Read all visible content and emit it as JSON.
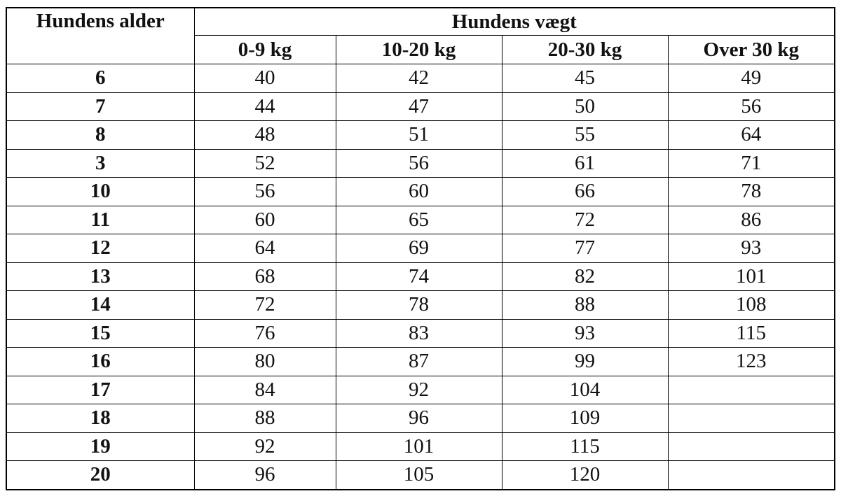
{
  "table": {
    "header": {
      "age": "Hundens alder",
      "weight": "Hundens vægt",
      "columns": [
        "0-9 kg",
        "10-20 kg",
        "20-30 kg",
        "Over 30 kg"
      ]
    },
    "rows": [
      [
        6,
        40,
        42,
        45,
        49
      ],
      [
        7,
        44,
        47,
        50,
        56
      ],
      [
        8,
        48,
        51,
        55,
        64
      ],
      [
        3,
        52,
        56,
        61,
        71
      ],
      [
        10,
        56,
        60,
        66,
        78
      ],
      [
        11,
        60,
        65,
        72,
        86
      ],
      [
        12,
        64,
        69,
        77,
        93
      ],
      [
        13,
        68,
        74,
        82,
        101
      ],
      [
        14,
        72,
        78,
        88,
        108
      ],
      [
        15,
        76,
        83,
        93,
        115
      ],
      [
        16,
        80,
        87,
        99,
        123
      ],
      [
        17,
        84,
        92,
        104
      ],
      [
        18,
        88,
        96,
        109
      ],
      [
        19,
        92,
        101,
        115
      ],
      [
        20,
        96,
        105,
        120
      ]
    ]
  }
}
